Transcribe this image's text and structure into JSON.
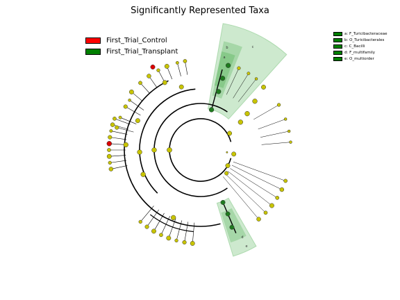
{
  "title": "Significantly Represented Taxa",
  "legend": [
    {
      "label": "First_Trial_Control",
      "color": "#ff0000"
    },
    {
      "label": "First_Trial_Transplant",
      "color": "#008000"
    }
  ],
  "clade_key": [
    {
      "label": "a: F_Turicibacteraceae",
      "color": "#008000"
    },
    {
      "label": "b: O_Turicibacterales",
      "color": "#008000"
    },
    {
      "label": "c: C_Bacilli",
      "color": "#008000"
    },
    {
      "label": "d: F_multifamily",
      "color": "#008000"
    },
    {
      "label": "e: O_multiorder",
      "color": "#008000"
    }
  ],
  "clade_letters": [
    "a",
    "b",
    "c",
    "d",
    "e"
  ],
  "colors": {
    "node_default": "#c8c400",
    "node_control": "#dd0000",
    "node_transplant": "#1e7a1e",
    "highlight_fill": "#4caf50"
  }
}
